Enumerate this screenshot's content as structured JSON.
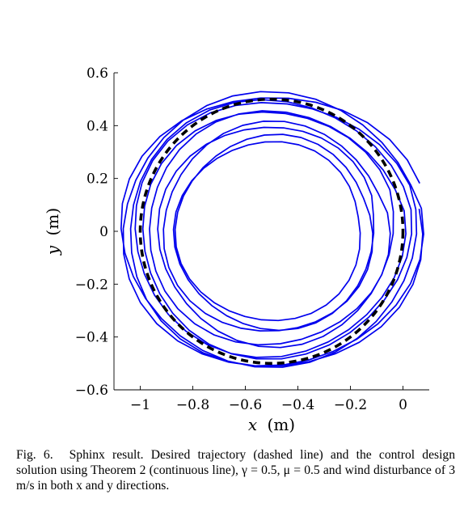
{
  "chart_data": {
    "type": "line",
    "xlabel_var": "x",
    "xlabel_unit": "(m)",
    "ylabel_var": "y",
    "ylabel_unit": "(m)",
    "xlim": [
      -1.1,
      0.1
    ],
    "ylim": [
      -0.6,
      0.6
    ],
    "xticks": [
      -1,
      -0.8,
      -0.6,
      -0.4,
      -0.2,
      0
    ],
    "xtick_labels": [
      "−1",
      "−0.8",
      "−0.6",
      "−0.4",
      "−0.2",
      "0"
    ],
    "yticks": [
      -0.6,
      -0.4,
      -0.2,
      0,
      0.2,
      0.4,
      0.6
    ],
    "ytick_labels": [
      "−0.6",
      "−0.4",
      "−0.2",
      "0",
      "0.2",
      "0.4",
      "0.6"
    ],
    "grid": false,
    "series": [
      {
        "style": "dashed",
        "color": "#000000",
        "shape": "circle",
        "center": [
          -0.5,
          0.0
        ],
        "radius": 0.5
      },
      {
        "style": "solid",
        "color": "#0000ee",
        "shape": "spiral",
        "center": [
          -0.5,
          0.0
        ],
        "loops": [
          {
            "rx": 0.59,
            "ry": 0.52,
            "phase": 0.0
          },
          {
            "rx": 0.55,
            "ry": 0.5,
            "phase": 0.4
          },
          {
            "rx": 0.5,
            "ry": 0.46,
            "phase": 0.9
          },
          {
            "rx": 0.44,
            "ry": 0.42,
            "phase": 1.3
          },
          {
            "rx": 0.38,
            "ry": 0.37,
            "phase": 1.8
          },
          {
            "rx": 0.34,
            "ry": 0.33,
            "phase": 2.2
          },
          {
            "rx": 0.4,
            "ry": 0.39,
            "phase": 2.7
          },
          {
            "rx": 0.47,
            "ry": 0.45,
            "phase": 3.1
          },
          {
            "rx": 0.53,
            "ry": 0.49,
            "phase": 3.6
          },
          {
            "rx": 0.57,
            "ry": 0.52,
            "phase": 4.0
          }
        ]
      }
    ]
  },
  "caption": {
    "fig_label": "Fig. 6.",
    "text": "Sphinx result. Desired trajectory (dashed line) and the control design solution using Theorem 2 (continuous line), γ = 0.5, μ = 0.5 and wind disturbance of 3 m/s in both x and y directions."
  }
}
